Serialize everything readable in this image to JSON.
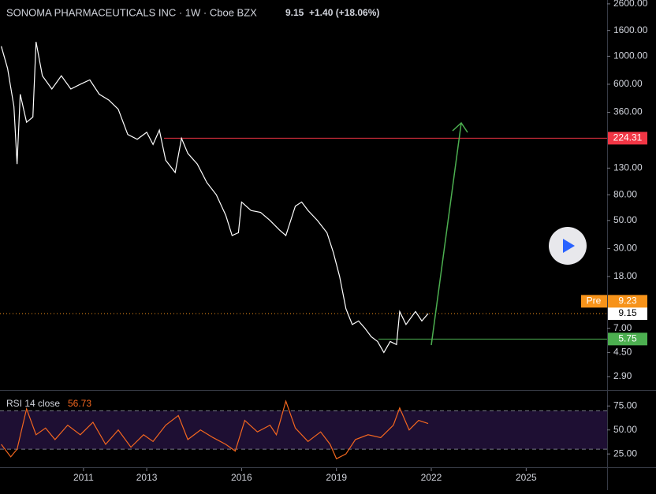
{
  "header": {
    "symbol": "SONOMA PHARMACEUTICALS INC · 1W · Cboe BZX",
    "last": "9.15",
    "change": "+1.40 (+18.06%)"
  },
  "chart_data": [
    {
      "type": "line",
      "log_scale": true,
      "color": "#ffffff",
      "x": [
        2008.4,
        2008.6,
        2008.8,
        2008.9,
        2009.0,
        2009.2,
        2009.4,
        2009.5,
        2009.7,
        2010.0,
        2010.3,
        2010.6,
        2010.9,
        2011.2,
        2011.5,
        2011.8,
        2012.1,
        2012.4,
        2012.7,
        2013.0,
        2013.2,
        2013.4,
        2013.6,
        2013.9,
        2014.1,
        2014.3,
        2014.6,
        2014.9,
        2015.2,
        2015.5,
        2015.7,
        2015.9,
        2016.0,
        2016.3,
        2016.6,
        2016.9,
        2017.2,
        2017.4,
        2017.7,
        2017.9,
        2018.1,
        2018.4,
        2018.7,
        2018.9,
        2019.1,
        2019.3,
        2019.5,
        2019.7,
        2019.9,
        2020.1,
        2020.3,
        2020.5,
        2020.7,
        2020.9,
        2021.0,
        2021.2,
        2021.5,
        2021.7,
        2021.9
      ],
      "values": [
        1200,
        800,
        400,
        140,
        500,
        300,
        330,
        1300,
        700,
        550,
        700,
        550,
        600,
        650,
        500,
        450,
        380,
        240,
        220,
        250,
        200,
        260,
        150,
        120,
        224,
        170,
        140,
        100,
        80,
        55,
        38,
        40,
        70,
        60,
        58,
        50,
        42,
        38,
        65,
        70,
        60,
        50,
        40,
        28,
        18,
        10,
        7.5,
        8,
        7,
        6,
        5.5,
        4.5,
        5.5,
        5.2,
        9.5,
        7.5,
        9.5,
        8,
        9.15
      ],
      "xlim": [
        2008.36,
        2027.56
      ],
      "ylim": [
        2.27,
        2790
      ],
      "yticks": [
        {
          "value": 2600,
          "label": "2600.00"
        },
        {
          "value": 1600,
          "label": "1600.00"
        },
        {
          "value": 1000,
          "label": "1000.00"
        },
        {
          "value": 600,
          "label": "600.00"
        },
        {
          "value": 360,
          "label": "360.00"
        },
        {
          "value": 130,
          "label": "130.00"
        },
        {
          "value": 80,
          "label": "80.00"
        },
        {
          "value": 50,
          "label": "50.00"
        },
        {
          "value": 30,
          "label": "30.00"
        },
        {
          "value": 18,
          "label": "18.00"
        },
        {
          "value": 7,
          "label": "7.00"
        },
        {
          "value": 4.5,
          "label": "4.50"
        },
        {
          "value": 2.9,
          "label": "2.90"
        }
      ],
      "price_lines": [
        {
          "value": 224.31,
          "color": "#f23645"
        },
        {
          "value": 5.75,
          "color": "#4caf50"
        },
        {
          "value": 9.15,
          "color": "#f7931a"
        }
      ],
      "premarket": {
        "tag": "Pre",
        "value": 9.23,
        "color": "#f7931a"
      }
    },
    {
      "type": "line",
      "title": "RSI 14 close",
      "last_value": 56.73,
      "color": "#f4671f",
      "x": [
        2008.4,
        2008.7,
        2008.9,
        2009.2,
        2009.5,
        2009.8,
        2010.1,
        2010.5,
        2010.9,
        2011.3,
        2011.7,
        2012.1,
        2012.5,
        2012.9,
        2013.2,
        2013.6,
        2014.0,
        2014.3,
        2014.7,
        2015.1,
        2015.5,
        2015.8,
        2016.1,
        2016.5,
        2016.9,
        2017.1,
        2017.4,
        2017.7,
        2018.1,
        2018.5,
        2018.8,
        2019.0,
        2019.3,
        2019.6,
        2020.0,
        2020.4,
        2020.8,
        2021.0,
        2021.3,
        2021.6,
        2021.9
      ],
      "values": [
        35,
        22,
        30,
        72,
        45,
        52,
        40,
        55,
        45,
        58,
        35,
        50,
        32,
        45,
        38,
        55,
        65,
        40,
        50,
        42,
        35,
        28,
        60,
        48,
        55,
        45,
        80,
        52,
        38,
        48,
        35,
        20,
        25,
        40,
        45,
        42,
        55,
        73,
        50,
        60,
        56.73
      ],
      "xlim": [
        2008.36,
        2027.56
      ],
      "ylim": [
        12,
        90
      ],
      "yticks": [
        {
          "value": 75,
          "label": "75.00"
        },
        {
          "value": 50,
          "label": "50.00"
        },
        {
          "value": 25,
          "label": "25.00"
        }
      ],
      "band": [
        30,
        70
      ],
      "xticks": [
        2011,
        2013,
        2016,
        2019,
        2022,
        2025
      ]
    }
  ]
}
